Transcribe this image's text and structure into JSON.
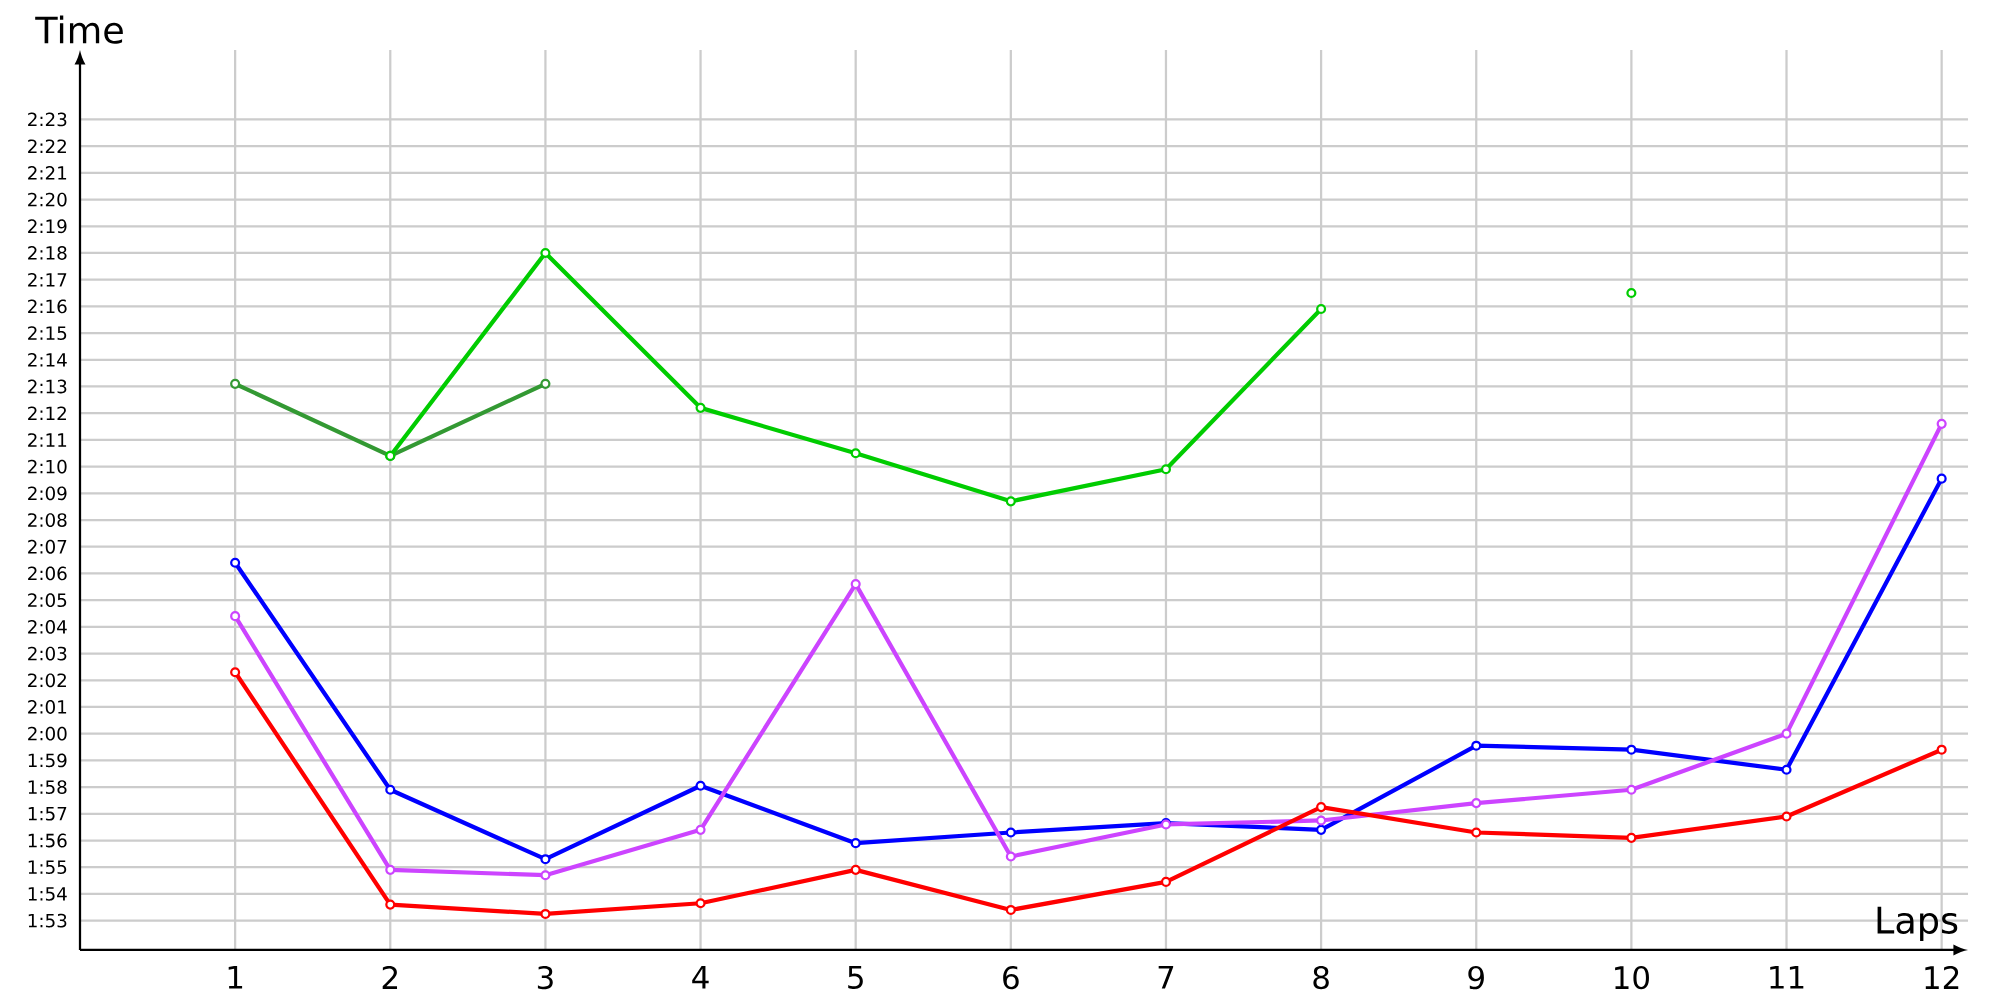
{
  "chart_data": {
    "type": "line",
    "xlabel": "Laps",
    "ylabel": "Time",
    "x": [
      1,
      2,
      3,
      4,
      5,
      6,
      7,
      8,
      9,
      10,
      11,
      12
    ],
    "xlim": [
      0,
      12.17
    ],
    "xticks": [
      1,
      2,
      3,
      4,
      5,
      6,
      7,
      8,
      9,
      10,
      11,
      12
    ],
    "ylim": [
      111.9,
      145.6
    ],
    "yticks": [
      {
        "value": 113,
        "label": "1:53"
      },
      {
        "value": 114,
        "label": "1:54"
      },
      {
        "value": 115,
        "label": "1:55"
      },
      {
        "value": 116,
        "label": "1:56"
      },
      {
        "value": 117,
        "label": "1:57"
      },
      {
        "value": 118,
        "label": "1:58"
      },
      {
        "value": 119,
        "label": "1:59"
      },
      {
        "value": 120,
        "label": "2:00"
      },
      {
        "value": 121,
        "label": "2:01"
      },
      {
        "value": 122,
        "label": "2:02"
      },
      {
        "value": 123,
        "label": "2:03"
      },
      {
        "value": 124,
        "label": "2:04"
      },
      {
        "value": 125,
        "label": "2:05"
      },
      {
        "value": 126,
        "label": "2:06"
      },
      {
        "value": 127,
        "label": "2:07"
      },
      {
        "value": 128,
        "label": "2:08"
      },
      {
        "value": 129,
        "label": "2:09"
      },
      {
        "value": 130,
        "label": "2:10"
      },
      {
        "value": 131,
        "label": "2:11"
      },
      {
        "value": 132,
        "label": "2:12"
      },
      {
        "value": 133,
        "label": "2:13"
      },
      {
        "value": 134,
        "label": "2:14"
      },
      {
        "value": 135,
        "label": "2:15"
      },
      {
        "value": 136,
        "label": "2:16"
      },
      {
        "value": 137,
        "label": "2:17"
      },
      {
        "value": 138,
        "label": "2:18"
      },
      {
        "value": 139,
        "label": "2:19"
      },
      {
        "value": 140,
        "label": "2:20"
      },
      {
        "value": 141,
        "label": "2:21"
      },
      {
        "value": 142,
        "label": "2:22"
      },
      {
        "value": 143,
        "label": "2:23"
      }
    ],
    "grid": true,
    "marker": "circle",
    "line_style": "solid",
    "series": [
      {
        "color": "#339933",
        "values": [
          133.1,
          130.4,
          133.1,
          null,
          null,
          null,
          null,
          null,
          null,
          null,
          null,
          null
        ]
      },
      {
        "color": "#00cc00",
        "values": [
          null,
          130.4,
          138.0,
          132.2,
          130.5,
          128.7,
          129.9,
          135.9,
          null,
          136.5,
          null,
          null
        ]
      },
      {
        "color": "#0000ff",
        "values": [
          126.4,
          117.9,
          115.3,
          118.05,
          115.9,
          116.3,
          116.65,
          116.4,
          119.55,
          119.4,
          118.65,
          129.55
        ]
      },
      {
        "color": "#cc44ff",
        "values": [
          124.4,
          114.9,
          114.7,
          116.4,
          125.6,
          115.4,
          116.6,
          116.75,
          117.4,
          117.9,
          120.0,
          131.6
        ]
      },
      {
        "color": "#ff0000",
        "values": [
          122.3,
          113.6,
          113.25,
          113.65,
          114.9,
          113.4,
          114.45,
          117.25,
          116.3,
          116.1,
          116.9,
          119.4
        ]
      }
    ]
  }
}
